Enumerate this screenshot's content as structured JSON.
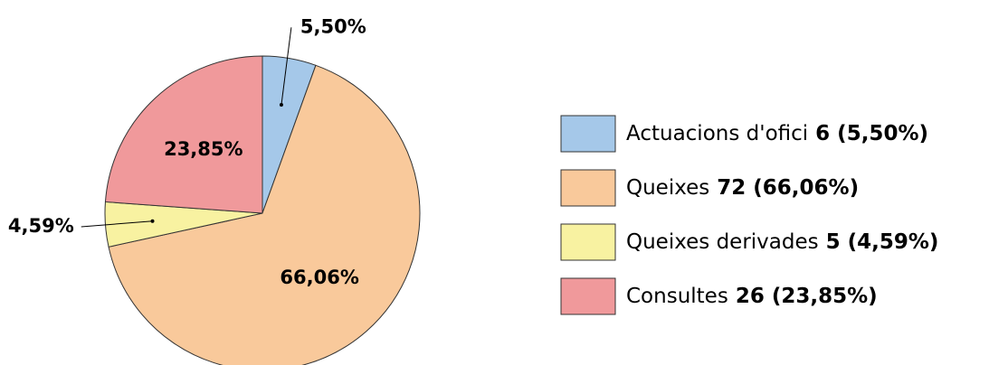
{
  "chart_data": {
    "type": "pie",
    "categories": [
      "Actuacions d'ofici",
      "Queixes",
      "Queixes derivades",
      "Consultes"
    ],
    "values": [
      5.5,
      66.06,
      4.59,
      23.85
    ],
    "value_labels": [
      "5,50%",
      "66,06%",
      "4,59%",
      "23,85%"
    ],
    "legend_labels": [
      "6 (5,50%)",
      "72 (66,06%)",
      "5 (4,59%)",
      "26 (23,85%)"
    ],
    "colors": [
      "#a5c8e9",
      "#f9c99b",
      "#f8f2a1",
      "#f0999b"
    ],
    "legend": "right"
  }
}
